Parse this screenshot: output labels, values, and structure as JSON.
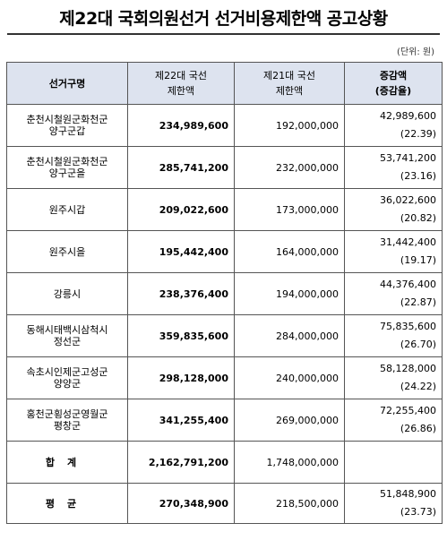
{
  "title": "제22대 국회의원선거 선거비용제한액 공고상황",
  "unit": "(단위: 원)",
  "headers": {
    "district": "선거구명",
    "c22": [
      "제22대 국선",
      "제한액"
    ],
    "c21": [
      "제21대 국선",
      "제한액"
    ],
    "diff": [
      "증감액",
      "(증감율)"
    ]
  },
  "rows": [
    {
      "name": [
        "춘천시철원군화천군",
        "양구군갑"
      ],
      "v22": "234,989,600",
      "v21": "192,000,000",
      "diff": "42,989,600",
      "rate": "(22.39)"
    },
    {
      "name": [
        "춘천시철원군화천군",
        "양구군을"
      ],
      "v22": "285,741,200",
      "v21": "232,000,000",
      "diff": "53,741,200",
      "rate": "(23.16)"
    },
    {
      "name": [
        "원주시갑"
      ],
      "v22": "209,022,600",
      "v21": "173,000,000",
      "diff": "36,022,600",
      "rate": "(20.82)"
    },
    {
      "name": [
        "원주시을"
      ],
      "v22": "195,442,400",
      "v21": "164,000,000",
      "diff": "31,442,400",
      "rate": "(19.17)"
    },
    {
      "name": [
        "강릉시"
      ],
      "v22": "238,376,400",
      "v21": "194,000,000",
      "diff": "44,376,400",
      "rate": "(22.87)"
    },
    {
      "name": [
        "동해시태백시삼척시",
        "정선군"
      ],
      "v22": "359,835,600",
      "v21": "284,000,000",
      "diff": "75,835,600",
      "rate": "(26.70)"
    },
    {
      "name": [
        "속초시인제군고성군",
        "양양군"
      ],
      "v22": "298,128,000",
      "v21": "240,000,000",
      "diff": "58,128,000",
      "rate": "(24.22)"
    },
    {
      "name": [
        "홍천군횡성군영월군",
        "평창군"
      ],
      "v22": "341,255,400",
      "v21": "269,000,000",
      "diff": "72,255,400",
      "rate": "(26.86)"
    }
  ],
  "total": {
    "label": "합계",
    "v22": "2,162,791,200",
    "v21": "1,748,000,000",
    "diff": "",
    "rate": ""
  },
  "average": {
    "label": "평균",
    "v22": "270,348,900",
    "v21": "218,500,000",
    "diff": "51,848,900",
    "rate": "(23.73)"
  }
}
